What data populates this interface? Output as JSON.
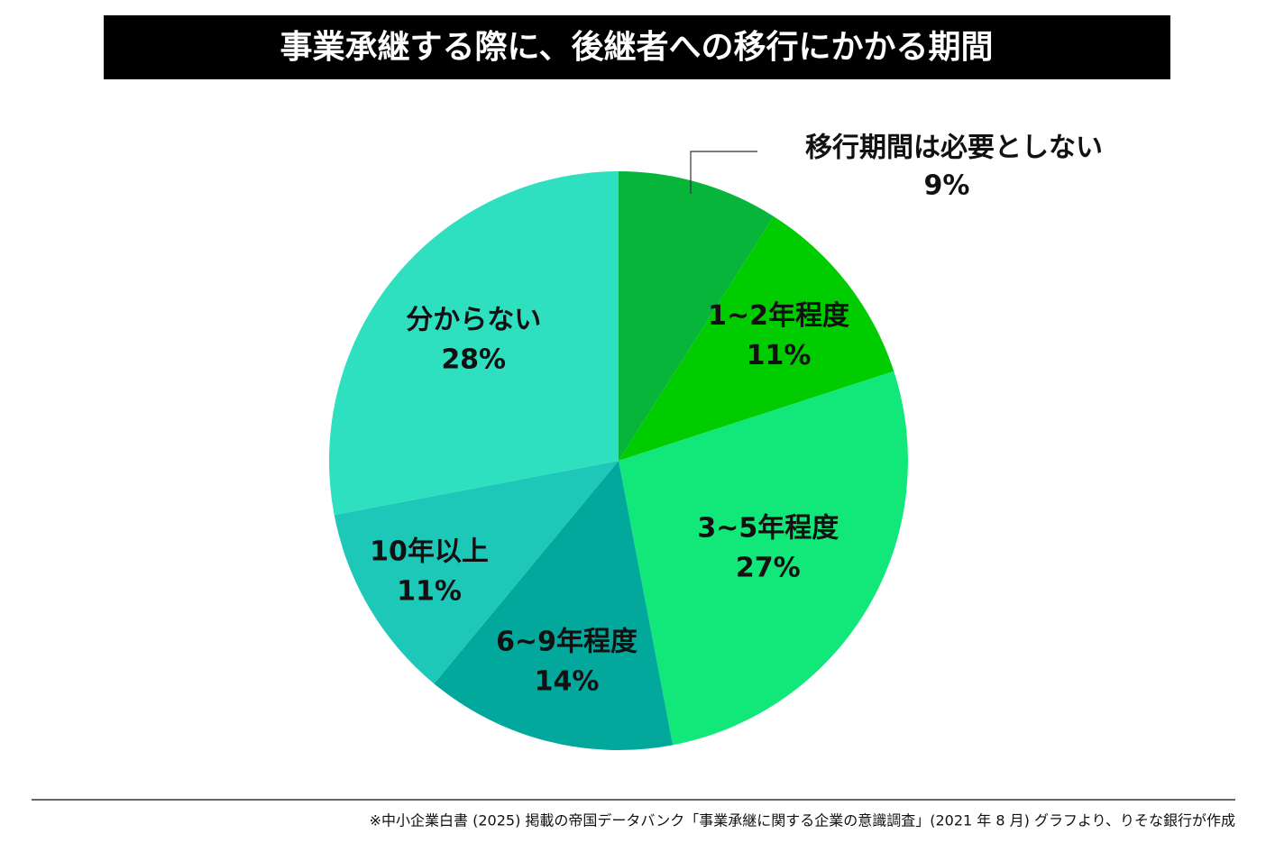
{
  "chart_data": {
    "type": "pie",
    "title": "事業承継する際に、後継者への移行にかかる期間",
    "categories": [
      "移行期間は必要としない",
      "1~2年程度",
      "3~5年程度",
      "6~9年程度",
      "10年以上",
      "分からない"
    ],
    "values": [
      9,
      11,
      27,
      14,
      11,
      28
    ],
    "value_labels": [
      "9%",
      "11%",
      "27%",
      "14%",
      "11%",
      "28%"
    ],
    "colors": [
      "#07b53a",
      "#00cc00",
      "#12e87a",
      "#02a89b",
      "#1ec8b8",
      "#2ee0c0"
    ],
    "source": "※中小企業白書 (2025) 掲載の帝国データバンク「事業承継に関する企業の意識調査」(2021 年 8 月) グラフより、りそな銀行が作成"
  }
}
